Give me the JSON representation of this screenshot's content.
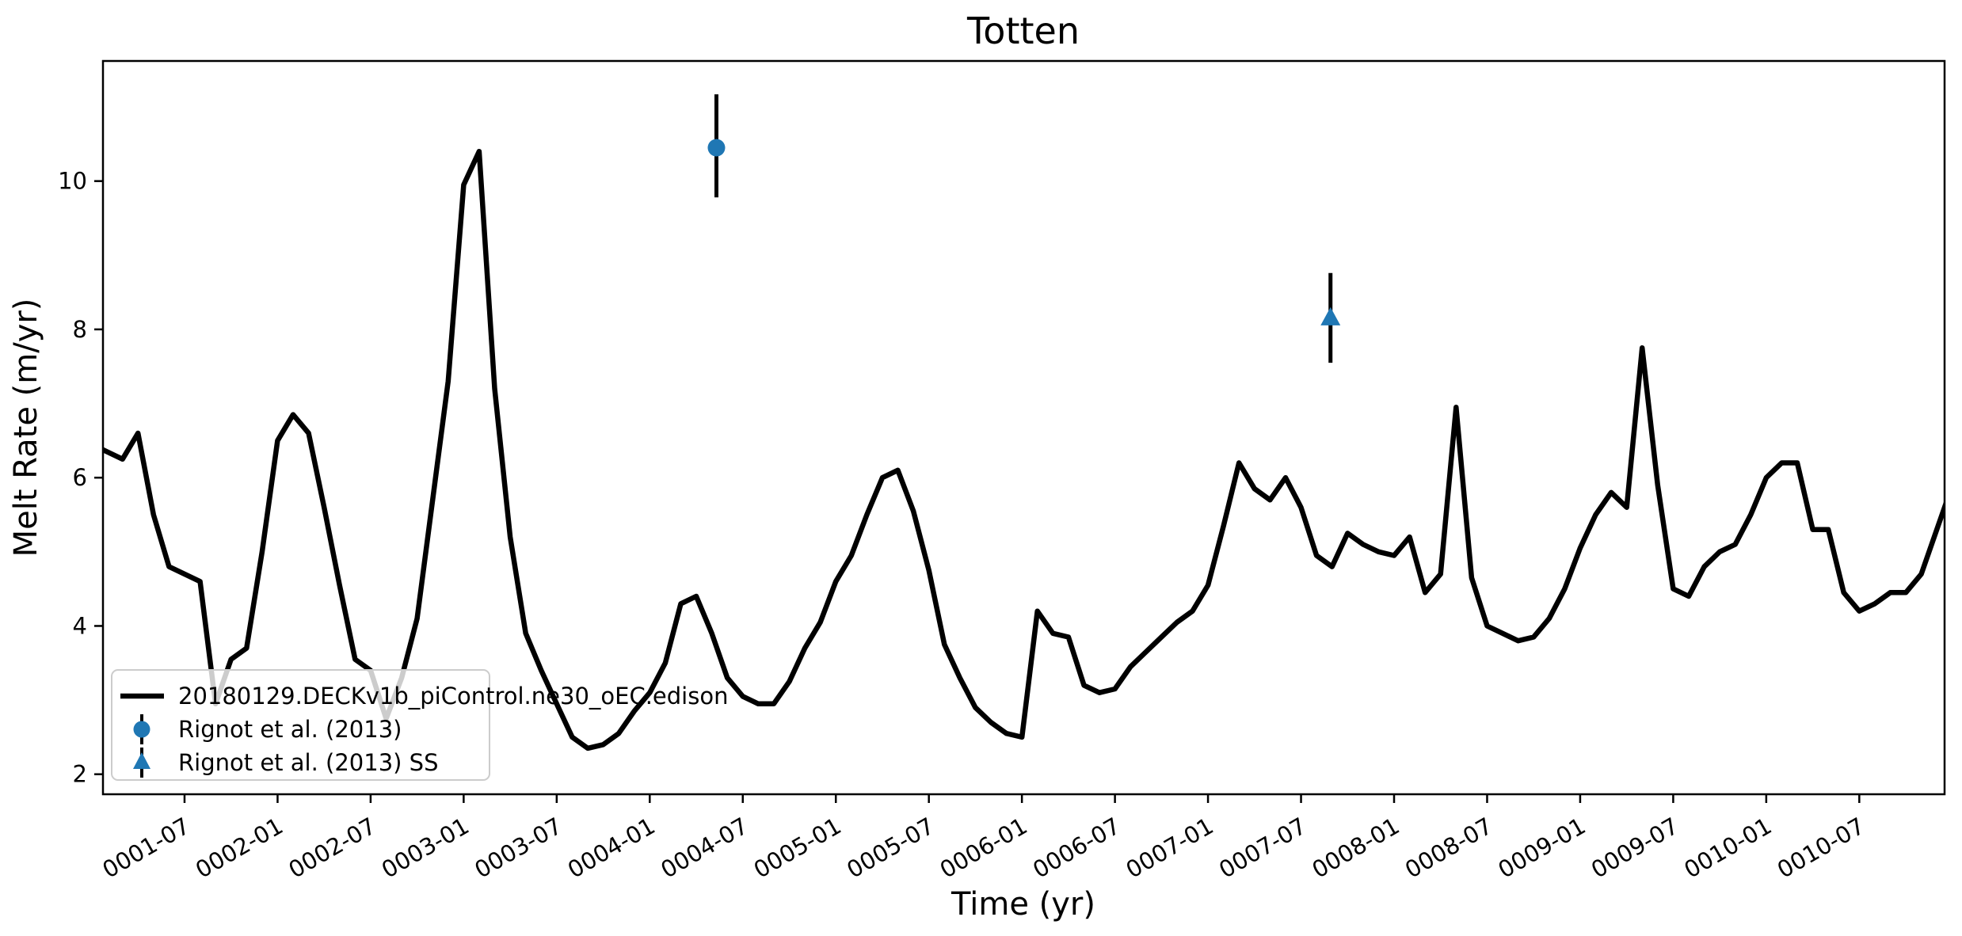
{
  "chart_data": {
    "type": "line",
    "title": "Totten",
    "xlabel": "Time (yr)",
    "ylabel": "Melt Rate (m/yr)",
    "grid": false,
    "axes": {
      "ylim": [
        1.73,
        11.62
      ],
      "yticks": [
        2,
        4,
        6,
        8,
        10
      ],
      "xlim_month_index": [
        0.74,
        119.5
      ],
      "xtick_month_indices": [
        6,
        12,
        18,
        24,
        30,
        36,
        42,
        48,
        54,
        60,
        66,
        72,
        78,
        84,
        90,
        96,
        102,
        108,
        114
      ],
      "xtick_labels": [
        "0001-07",
        "0002-01",
        "0002-07",
        "0003-01",
        "0003-07",
        "0004-01",
        "0004-07",
        "0005-01",
        "0005-07",
        "0006-01",
        "0006-07",
        "0007-01",
        "0007-07",
        "0008-01",
        "0008-07",
        "0009-01",
        "0009-07",
        "0010-01",
        "0010-07"
      ],
      "xtick_rotation_deg": 30
    },
    "series": [
      {
        "name": "20180129.DECKv1b_piControl.ne30_oEC.edison",
        "color": "#000000",
        "line_width": 6.5,
        "start_date": "0001-01",
        "x_month_index_start": 0,
        "values": [
          6.45,
          6.35,
          6.25,
          6.6,
          5.5,
          4.8,
          4.7,
          4.6,
          2.95,
          3.55,
          3.7,
          5.0,
          6.5,
          6.85,
          6.6,
          5.6,
          4.55,
          3.55,
          3.4,
          2.75,
          3.3,
          4.1,
          5.7,
          7.3,
          9.95,
          10.4,
          7.2,
          5.2,
          3.9,
          3.4,
          2.95,
          2.5,
          2.35,
          2.4,
          2.55,
          2.85,
          3.1,
          3.5,
          4.3,
          4.4,
          3.9,
          3.3,
          3.05,
          2.95,
          2.95,
          3.25,
          3.7,
          4.05,
          4.6,
          4.95,
          5.5,
          6.0,
          6.1,
          5.55,
          4.75,
          3.75,
          3.3,
          2.9,
          2.7,
          2.55,
          2.5,
          4.2,
          3.9,
          3.85,
          3.2,
          3.1,
          3.15,
          3.45,
          3.65,
          3.85,
          4.05,
          4.2,
          4.55,
          5.35,
          6.2,
          5.85,
          5.7,
          6.0,
          5.6,
          4.95,
          4.8,
          5.25,
          5.1,
          5.0,
          4.95,
          5.2,
          4.45,
          4.7,
          6.95,
          4.65,
          4.0,
          3.9,
          3.8,
          3.85,
          4.1,
          4.5,
          5.05,
          5.5,
          5.8,
          5.6,
          7.75,
          5.9,
          4.5,
          4.4,
          4.8,
          5.0,
          5.1,
          5.5,
          6.0,
          6.2,
          6.2,
          5.3,
          5.3,
          4.45,
          4.2,
          4.3,
          4.45,
          4.45,
          4.7,
          5.3,
          5.9
        ]
      }
    ],
    "observations": [
      {
        "name": "Rignot et al. (2013)",
        "marker": "circle",
        "marker_color": "#1f77b4",
        "errorbar_color": "#000000",
        "date": "0004-05",
        "x_month_index": 40.3,
        "value": 10.45,
        "error_low": 9.78,
        "error_high": 11.17
      },
      {
        "name": "Rignot et al. (2013) SS",
        "marker": "triangle-up",
        "marker_color": "#1f77b4",
        "errorbar_color": "#000000",
        "date": "0007-09",
        "x_month_index": 79.9,
        "value": 8.15,
        "error_low": 7.55,
        "error_high": 8.76
      }
    ],
    "legend": {
      "position": "lower left",
      "frame_color": "#cccccc",
      "background": "#ffffff",
      "background_opacity": 0.8,
      "entries": [
        "20180129.DECKv1b_piControl.ne30_oEC.edison",
        "Rignot et al. (2013)",
        "Rignot et al. (2013) SS"
      ]
    }
  }
}
